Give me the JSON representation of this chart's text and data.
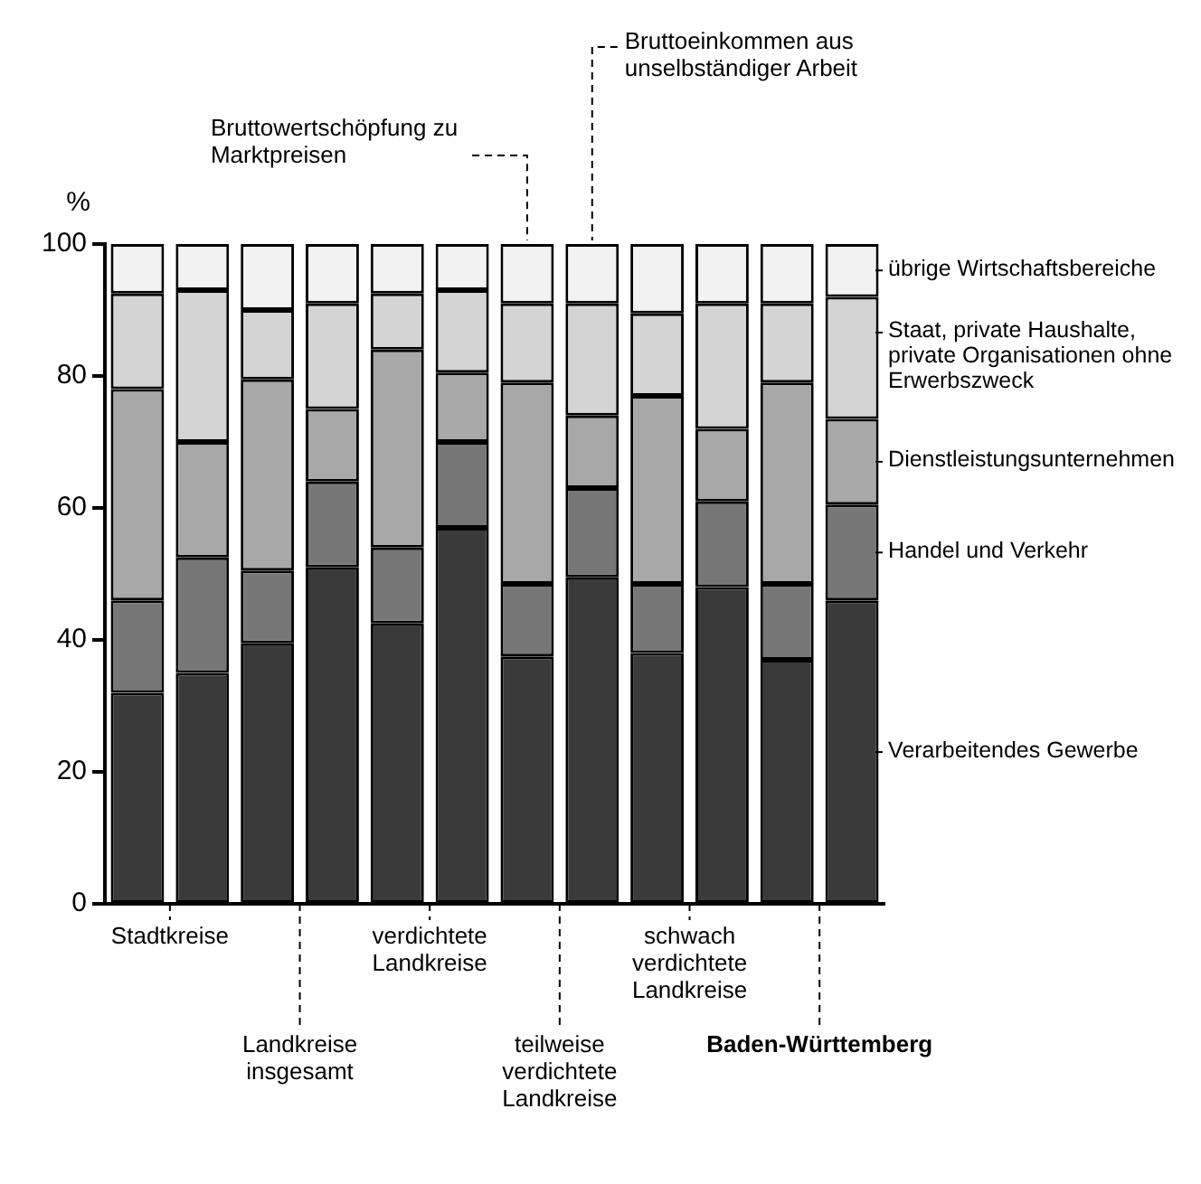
{
  "chart_data": {
    "type": "bar",
    "stacked": true,
    "ylabel": "%",
    "categories": [
      "Stadtkreise",
      null,
      "Landkreise insgesamt",
      null,
      "verdichtete Landkreise",
      null,
      "teilweise verdichtete Landkreise",
      null,
      "schwach verdichtete Landkreise",
      null,
      "Baden-Württemberg",
      null
    ],
    "series": [
      {
        "name": "Verarbeitendes Gewerbe",
        "color": "#3a3a3a",
        "values": [
          32,
          35,
          39.5,
          51,
          42.5,
          57,
          37.5,
          49.5,
          38,
          48,
          37,
          46
        ]
      },
      {
        "name": "Handel und Verkehr",
        "color": "#777777",
        "values": [
          14,
          17.5,
          11,
          13,
          11.5,
          13,
          11,
          13.5,
          10.5,
          13,
          11.5,
          14.5
        ]
      },
      {
        "name": "Dienstleistungsunternehmen",
        "color": "#a8a8a8",
        "values": [
          32,
          17.5,
          29,
          11,
          30,
          10.5,
          30.5,
          11,
          28.5,
          11,
          30.5,
          13
        ]
      },
      {
        "name": "Staat, private Haushalte, private Organisationen ohne Erwerbszweck",
        "color": "#d4d4d4",
        "values": [
          14.5,
          23,
          10.5,
          16,
          8.5,
          12.5,
          12,
          17,
          12.5,
          19,
          12,
          18.5
        ]
      },
      {
        "name": "übrige Wirtschaftsbereiche",
        "color": "#f2f2f2",
        "values": [
          7.5,
          7,
          10,
          9,
          7.5,
          7,
          9,
          9,
          10.5,
          9,
          9,
          8
        ]
      }
    ],
    "annotations": [
      "Bruttowertschöpfung zu Marktpreisen",
      "Bruttoeinkommen aus unselbständiger Arbeit"
    ],
    "ylim": [
      0,
      100
    ],
    "yticks": [
      0,
      20,
      40,
      60,
      80,
      100
    ],
    "grid": false,
    "legend": false
  }
}
